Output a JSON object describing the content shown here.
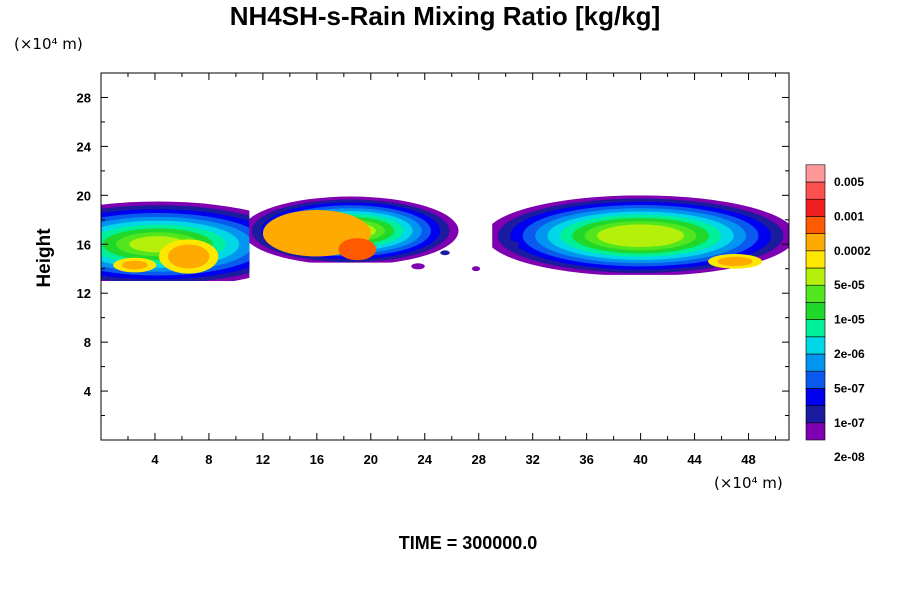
{
  "chart_data": {
    "type": "heatmap",
    "title": "NH4SH-s-Rain Mixing Ratio [kg/kg]",
    "ylabel": "Height",
    "y_unit_label": "(×10⁴ m)",
    "x_unit_label": "(×10⁴ m)",
    "xlim": [
      0,
      51
    ],
    "ylim": [
      0,
      30
    ],
    "x_ticks": [
      4,
      8,
      12,
      16,
      20,
      24,
      28,
      32,
      36,
      40,
      44,
      48
    ],
    "y_ticks": [
      4,
      8,
      12,
      16,
      20,
      24,
      28
    ],
    "colorbar": {
      "labels": [
        "0.005",
        "0.001",
        "0.0002",
        "5e-05",
        "1e-05",
        "2e-06",
        "5e-07",
        "1e-07",
        "2e-08"
      ],
      "colors": [
        "#7f00b0",
        "#1b1ba0",
        "#0000f0",
        "#0a5af0",
        "#0096f0",
        "#00d8e8",
        "#00ef9a",
        "#20d82a",
        "#52e61e",
        "#b4f00a",
        "#ffe800",
        "#ffaa00",
        "#ff5a00",
        "#f01e1e",
        "#ff5050",
        "#ff9898"
      ]
    },
    "regions": [
      {
        "name": "left-cloud",
        "x": [
          0,
          11
        ],
        "y": [
          13,
          20
        ]
      },
      {
        "name": "center-cloud",
        "x": [
          11,
          28
        ],
        "y": [
          14.5,
          20
        ]
      },
      {
        "name": "right-cloud",
        "x": [
          29,
          51
        ],
        "y": [
          13.5,
          20
        ]
      }
    ],
    "footer": "TIME = 300000.0"
  }
}
